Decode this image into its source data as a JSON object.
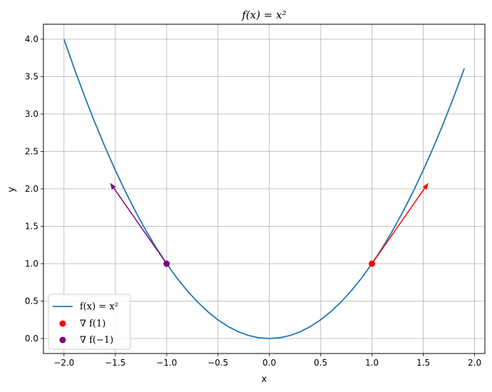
{
  "chart_data": {
    "type": "line",
    "title": "f(x) = x²",
    "xlabel": "x",
    "ylabel": "y",
    "xlim": [
      -2.2,
      2.1
    ],
    "ylim": [
      -0.2,
      4.2
    ],
    "xticks": [
      -2.0,
      -1.5,
      -1.0,
      -0.5,
      0.0,
      0.5,
      1.0,
      1.5,
      2.0
    ],
    "xtick_labels": [
      "−2.0",
      "−1.5",
      "−1.0",
      "−0.5",
      "0.0",
      "0.5",
      "1.0",
      "1.5",
      "2.0"
    ],
    "yticks": [
      0.0,
      0.5,
      1.0,
      1.5,
      2.0,
      2.5,
      3.0,
      3.5,
      4.0
    ],
    "ytick_labels": [
      "0.0",
      "0.5",
      "1.0",
      "1.5",
      "2.0",
      "2.5",
      "3.0",
      "3.5",
      "4.0"
    ],
    "grid": true,
    "legend_position": "lower-left",
    "curve": {
      "name": "f(x) = x²",
      "color": "#1f77b4",
      "x_start": -2.0,
      "x_end": 1.9,
      "x_step": 0.1,
      "formula": "x^2"
    },
    "gradient_points": [
      {
        "name": "∇ f(1)",
        "point": [
          1.0,
          1.0
        ],
        "arrow_to": [
          1.55,
          2.08
        ],
        "color": "#ff0000"
      },
      {
        "name": "∇ f(−1)",
        "point": [
          -1.0,
          1.0
        ],
        "arrow_to": [
          -1.55,
          2.08
        ],
        "color": "#800080"
      }
    ]
  }
}
